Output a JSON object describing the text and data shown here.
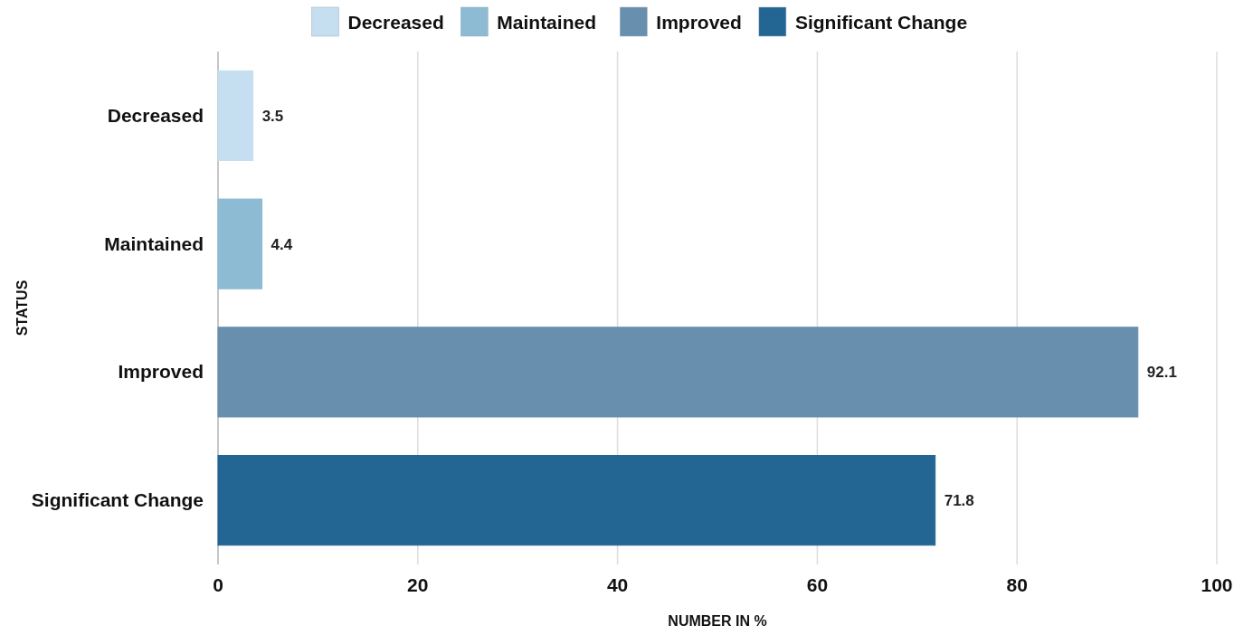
{
  "chart_data": {
    "type": "bar",
    "orientation": "horizontal",
    "xlabel": "NUMBER IN %",
    "ylabel": "STATUS",
    "categories": [
      "Decreased",
      "Maintained",
      "Improved",
      "Significant Change"
    ],
    "series": [
      {
        "name": "Decreased",
        "color": "#c5dff0",
        "values": [
          3.5,
          null,
          null,
          null
        ]
      },
      {
        "name": "Maintained",
        "color": "#8dbbd3",
        "values": [
          null,
          4.4,
          null,
          null
        ]
      },
      {
        "name": "Improved",
        "color": "#6890ae",
        "values": [
          null,
          null,
          92.1,
          null
        ]
      },
      {
        "name": "Significant Change",
        "color": "#236593",
        "values": [
          null,
          null,
          null,
          71.8
        ]
      }
    ],
    "xlim": [
      0,
      100
    ],
    "xticks": [
      0,
      20,
      40,
      60,
      80,
      100
    ],
    "grid": "x",
    "legend": "top",
    "data_labels": true
  }
}
